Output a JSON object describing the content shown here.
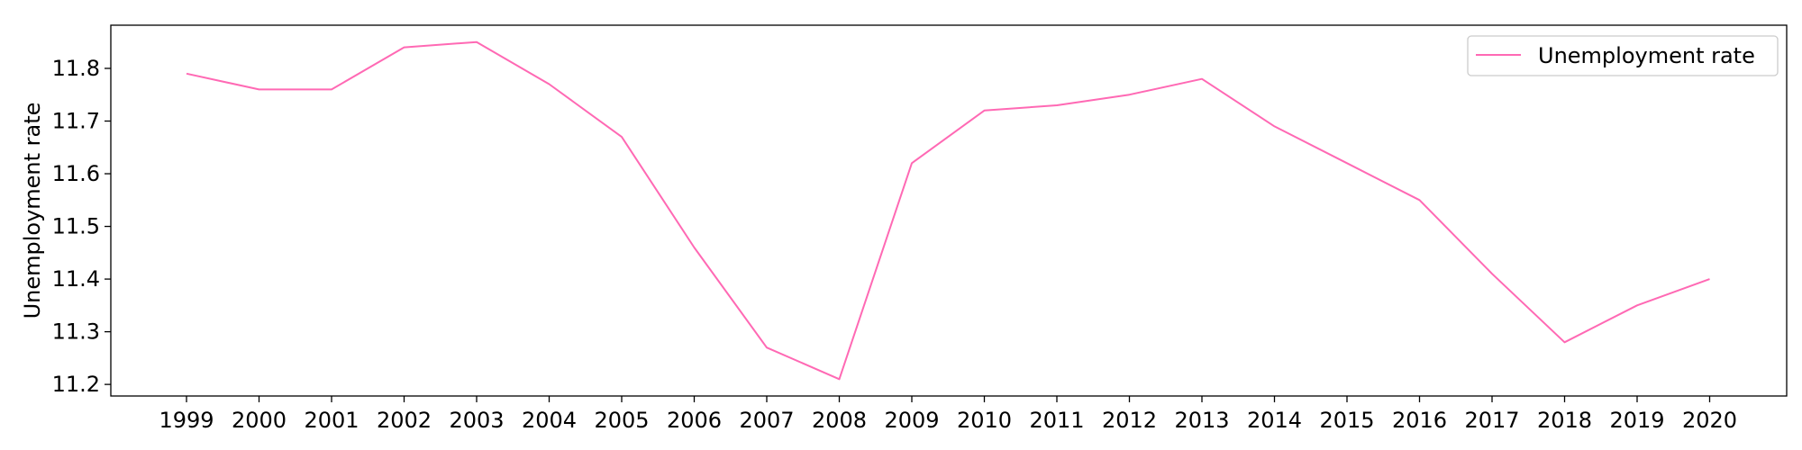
{
  "chart_data": {
    "type": "line",
    "title": "",
    "xlabel": "",
    "ylabel": "Unemployment rate",
    "categories": [
      "1999",
      "2000",
      "2001",
      "2002",
      "2003",
      "2004",
      "2005",
      "2006",
      "2007",
      "2008",
      "2009",
      "2010",
      "2011",
      "2012",
      "2013",
      "2014",
      "2015",
      "2016",
      "2017",
      "2018",
      "2019",
      "2020"
    ],
    "series": [
      {
        "name": "Unemployment rate",
        "color": "#ff69b4",
        "values": [
          11.79,
          11.76,
          11.76,
          11.84,
          11.85,
          11.77,
          11.67,
          11.46,
          11.27,
          11.21,
          11.62,
          11.72,
          11.73,
          11.75,
          11.78,
          11.69,
          11.62,
          11.55,
          11.41,
          11.28,
          11.35,
          11.4
        ]
      }
    ],
    "yticks": [
      "11.2",
      "11.3",
      "11.4",
      "11.5",
      "11.6",
      "11.7",
      "11.8"
    ],
    "ylim": [
      11.178,
      11.882
    ],
    "grid": false,
    "legend_position": "top-right"
  }
}
